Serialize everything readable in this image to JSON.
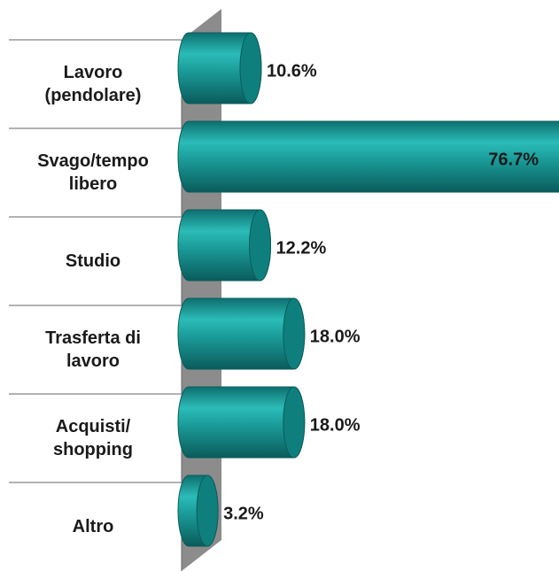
{
  "chart_data": {
    "type": "bar",
    "orientation": "horizontal",
    "categories": [
      "Lavoro (pendolare)",
      "Svago/tempo libero",
      "Studio",
      "Trasferta di lavoro",
      "Acquisti/ shopping",
      "Altro"
    ],
    "values": [
      10.6,
      76.7,
      12.2,
      18.0,
      18.0,
      3.2
    ],
    "value_labels": [
      "10.6%",
      "76.7%",
      "12.2%",
      "18.0%",
      "18.0%",
      "3.2%"
    ],
    "color": "#1a9a98"
  }
}
